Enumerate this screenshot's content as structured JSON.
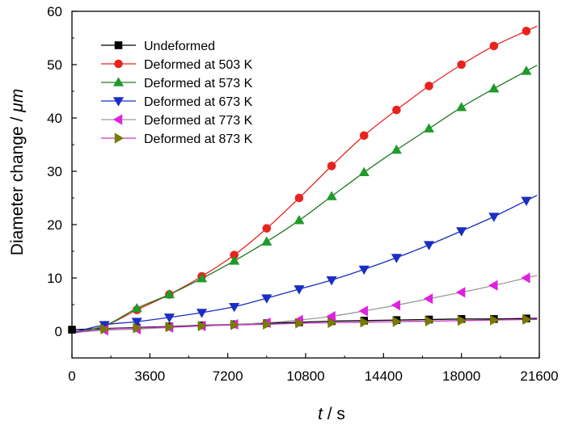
{
  "chart_data": {
    "type": "line",
    "xlabel_var": "t",
    "xlabel_unit": " / s",
    "ylabel_text": "Diameter change / ",
    "ylabel_unit": "μm",
    "xlim": [
      0,
      21600
    ],
    "ylim": [
      -5,
      60
    ],
    "xticks": [
      0,
      3600,
      7200,
      10800,
      14400,
      18000,
      21600
    ],
    "yticks": [
      0,
      10,
      20,
      30,
      40,
      50,
      60
    ],
    "grid": false,
    "legend_position": "top-left",
    "series": [
      {
        "name": "Undeformed",
        "color": "#000000",
        "marker": "square",
        "x": [
          0,
          1500,
          3000,
          4500,
          6000,
          7500,
          9000,
          10500,
          12000,
          13500,
          15000,
          16500,
          18000,
          19500,
          21000
        ],
        "y": [
          0.3,
          0.5,
          0.7,
          0.9,
          1.1,
          1.3,
          1.5,
          1.7,
          1.9,
          2.0,
          2.1,
          2.2,
          2.3,
          2.3,
          2.4
        ]
      },
      {
        "name": "Deformed at 503 K",
        "color": "#e8231e",
        "marker": "circle",
        "x": [
          1500,
          3000,
          4500,
          6000,
          7500,
          9000,
          10500,
          12000,
          13500,
          15000,
          16500,
          18000,
          19500,
          21000
        ],
        "y": [
          1.0,
          4.0,
          6.9,
          10.3,
          14.3,
          19.3,
          25.0,
          31.0,
          36.7,
          41.5,
          46.0,
          50.0,
          53.5,
          56.3
        ]
      },
      {
        "name": "Deformed at 573 K",
        "color": "#1f9b2a",
        "marker": "triangle-up",
        "x": [
          1500,
          3000,
          4500,
          6000,
          7500,
          9000,
          10500,
          12000,
          13500,
          15000,
          16500,
          18000,
          19500,
          21000
        ],
        "y": [
          1.0,
          4.3,
          6.9,
          9.9,
          13.2,
          16.8,
          20.8,
          25.3,
          29.8,
          34.0,
          38.0,
          42.0,
          45.5,
          48.8
        ]
      },
      {
        "name": "Deformed at 673 K",
        "color": "#1a2ec2",
        "marker": "triangle-down",
        "x": [
          1500,
          3000,
          4500,
          6000,
          7500,
          9000,
          10500,
          12000,
          13500,
          15000,
          16500,
          18000,
          19500,
          21000
        ],
        "y": [
          1.2,
          1.8,
          2.6,
          3.5,
          4.6,
          6.2,
          7.9,
          9.6,
          11.6,
          13.8,
          16.2,
          18.8,
          21.5,
          24.5
        ]
      },
      {
        "name": "Deformed at 773 K",
        "color": "#c98ec9",
        "marker": "triangle-left",
        "x": [
          1500,
          3000,
          4500,
          6000,
          7500,
          9000,
          10500,
          12000,
          13500,
          15000,
          16500,
          18000,
          19500,
          21000
        ],
        "y": [
          0.2,
          0.4,
          0.7,
          1.0,
          1.3,
          1.6,
          2.1,
          2.8,
          3.8,
          4.9,
          6.1,
          7.3,
          8.6,
          10.0
        ]
      },
      {
        "name": "Deformed at 873 K",
        "color": "#8a8a1a",
        "marker": "triangle-right",
        "x": [
          1500,
          3000,
          4500,
          6000,
          7500,
          9000,
          10500,
          12000,
          13500,
          15000,
          16500,
          18000,
          19500,
          21000
        ],
        "y": [
          0.4,
          0.6,
          0.8,
          1.0,
          1.2,
          1.3,
          1.5,
          1.6,
          1.7,
          1.8,
          1.9,
          2.0,
          2.1,
          2.2
        ]
      }
    ]
  },
  "marker_colors": {
    "Deformed at 773 K": "#e020e0",
    "Deformed at 873 K": "#7a7a00"
  },
  "line_colors": {
    "Undeformed": "#000000",
    "Deformed at 503 K": "#e8231e",
    "Deformed at 573 K": "#1f7a1f",
    "Deformed at 673 K": "#1a2ec2",
    "Deformed at 773 K": "#9a9a9a",
    "Deformed at 873 K": "#cc33cc"
  }
}
